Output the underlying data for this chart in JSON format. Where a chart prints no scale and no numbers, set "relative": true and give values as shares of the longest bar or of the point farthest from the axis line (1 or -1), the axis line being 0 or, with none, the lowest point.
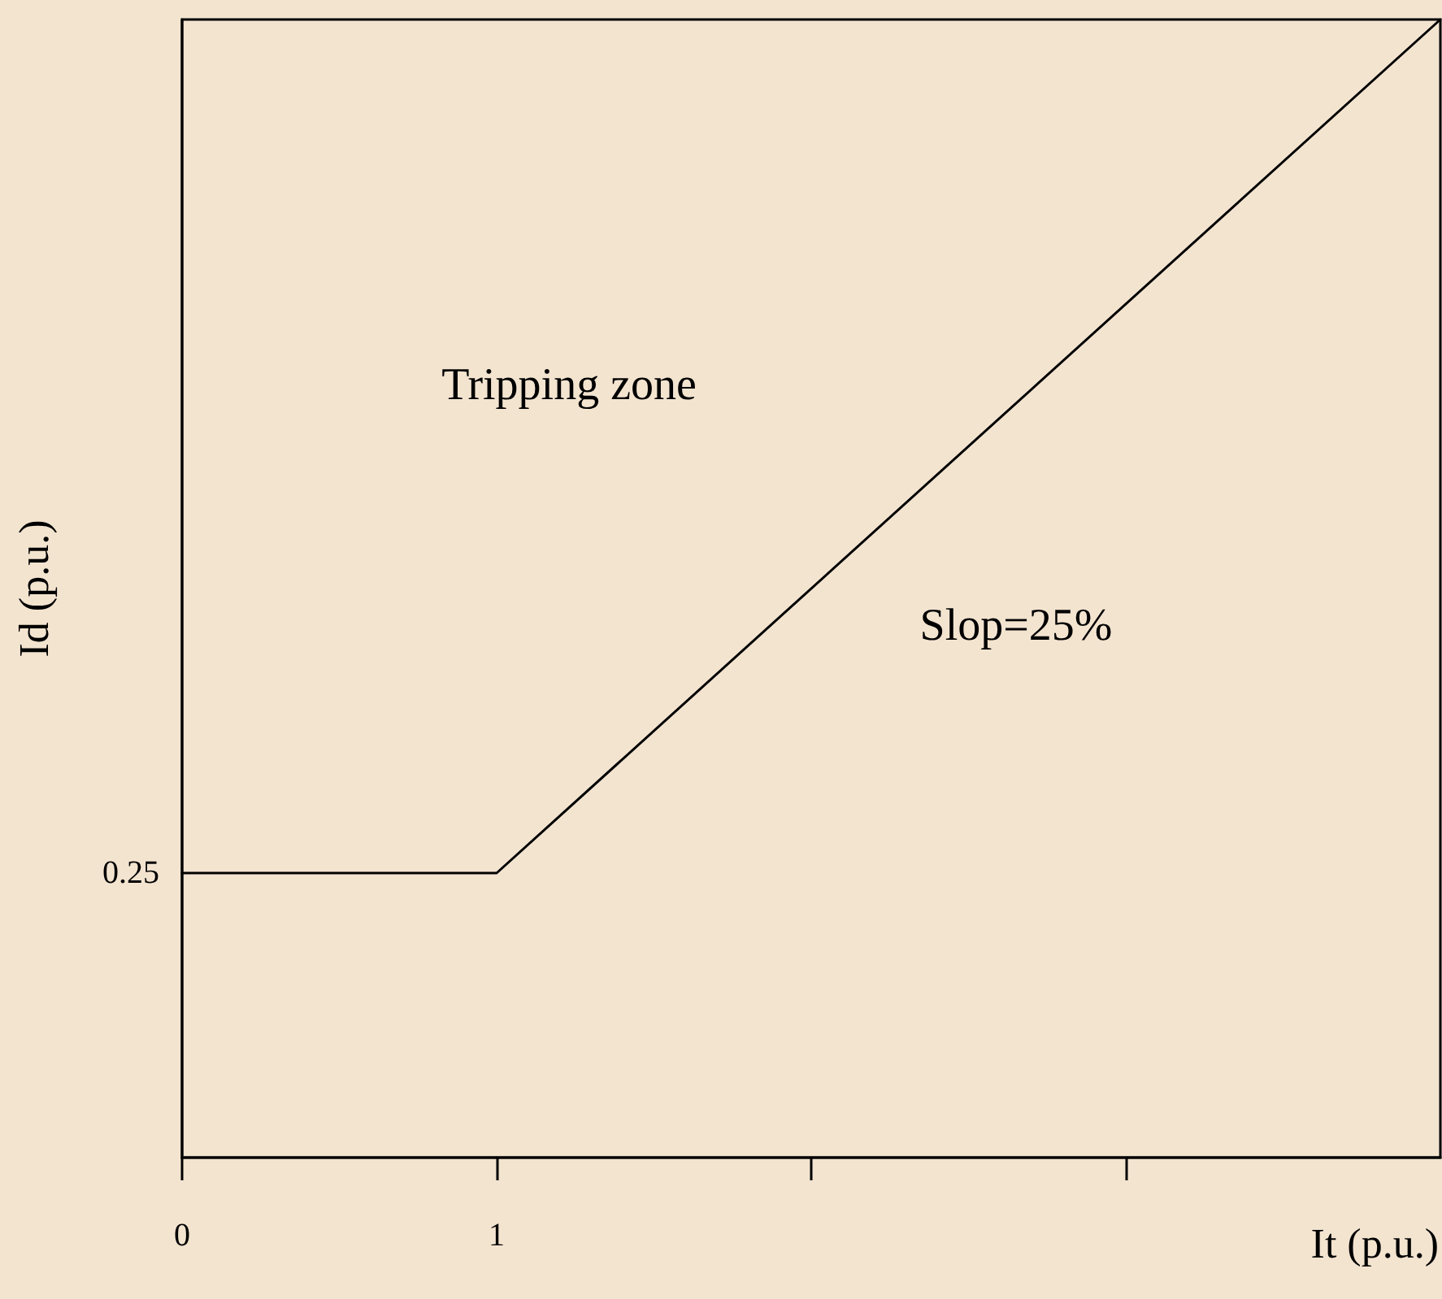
{
  "chart_data": {
    "type": "line",
    "xlabel": "It (p.u.)",
    "ylabel": "Id (p.u.)",
    "x": [
      0,
      1,
      4
    ],
    "values": [
      0.25,
      0.25,
      1
    ],
    "color": "#000000",
    "marker": "none",
    "line_style": "solid",
    "relative": true,
    "xlim": [
      0,
      4
    ],
    "xticks": [
      0,
      1,
      {
        "value": 2,
        "label": null
      },
      {
        "value": 3,
        "label": null
      }
    ],
    "grid": false,
    "annotations": [
      "Tripping zone",
      "Slop=25%",
      "0.25"
    ]
  }
}
